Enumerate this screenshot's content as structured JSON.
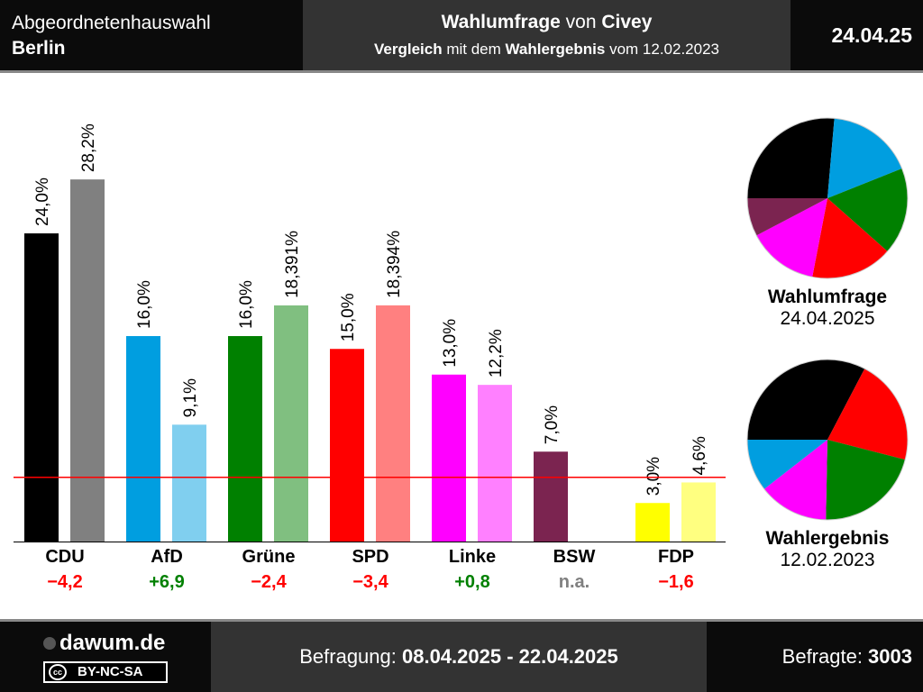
{
  "header": {
    "title_line1": "Abgeordnetenhauswahl",
    "title_line2": "Berlin",
    "center_bold1": "Wahlumfrage",
    "center_mid1": " von ",
    "center_bold2": "Civey",
    "sub_bold1": "Vergleich",
    "sub_mid": " mit dem ",
    "sub_bold2": "Wahlergebnis",
    "sub_end": " vom 12.02.2023",
    "date": "24.04.25"
  },
  "footer": {
    "brand": "dawum.de",
    "license": "BY-NC-SA",
    "license_cc": "cc",
    "period_label": "Befragung: ",
    "period": "08.04.2025 - 22.04.2025",
    "respondents_label": "Befragte: ",
    "respondents": "3003"
  },
  "chart_data": {
    "type": "bar",
    "categories": [
      "CDU",
      "AfD",
      "Grüne",
      "SPD",
      "Linke",
      "BSW",
      "FDP"
    ],
    "series": [
      {
        "name": "Wahlumfrage 24.04.2025",
        "values": [
          24.0,
          16.0,
          16.0,
          15.0,
          13.0,
          7.0,
          3.0
        ],
        "labels": [
          "24,0%",
          "16,0%",
          "16,0%",
          "15,0%",
          "13,0%",
          "7,0%",
          "3,0%"
        ],
        "colors": [
          "#000000",
          "#009ee0",
          "#008000",
          "#ff0000",
          "#ff00ff",
          "#7b2450",
          "#ffff00"
        ]
      },
      {
        "name": "Wahlergebnis 12.02.2023",
        "values": [
          28.2,
          9.1,
          18.391,
          18.394,
          12.2,
          null,
          4.6
        ],
        "labels": [
          "28,2%",
          "9,1%",
          "18,391%",
          "18,394%",
          "12,2%",
          "",
          "4,6%"
        ],
        "colors": [
          "#808080",
          "#80cfef",
          "#80bf80",
          "#ff8080",
          "#ff80ff",
          "#bd92a8",
          "#ffff80"
        ]
      }
    ],
    "differences": [
      "−4,2",
      "+6,9",
      "−2,4",
      "−3,4",
      "+0,8",
      "n.a.",
      "−1,6"
    ],
    "difference_colors": [
      "#ff0000",
      "#008000",
      "#ff0000",
      "#ff0000",
      "#008000",
      "#808080",
      "#ff0000"
    ],
    "threshold": 5,
    "threshold_color": "#ff0000",
    "ylim": [
      0,
      30
    ],
    "pies": [
      {
        "title": "Wahlumfrage",
        "date": "24.04.2025",
        "parties": [
          "CDU",
          "AfD",
          "Grüne",
          "SPD",
          "Linke",
          "BSW"
        ],
        "values": [
          24,
          16,
          16,
          15,
          13,
          7
        ],
        "colors": [
          "#000000",
          "#009ee0",
          "#008000",
          "#ff0000",
          "#ff00ff",
          "#7b2450"
        ]
      },
      {
        "title": "Wahlergebnis",
        "date": "12.02.2023",
        "parties": [
          "CDU",
          "SPD",
          "Grüne",
          "Linke",
          "AfD"
        ],
        "values": [
          28.2,
          18.394,
          18.391,
          12.2,
          9.1
        ],
        "colors": [
          "#000000",
          "#ff0000",
          "#008000",
          "#ff00ff",
          "#009ee0"
        ]
      }
    ]
  }
}
